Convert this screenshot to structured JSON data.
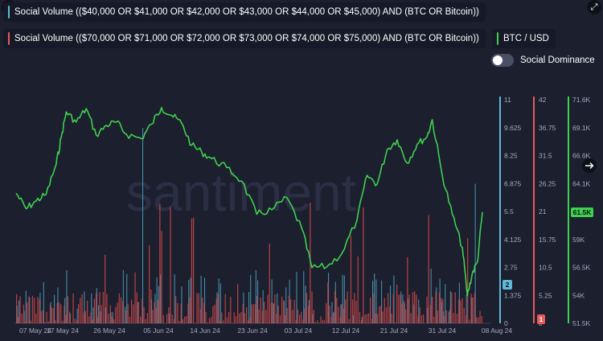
{
  "legend": {
    "series1_label": "Social Volume (($40,000 OR $41,000 OR $42,000 OR $43,000 OR $44,000 OR $45,000) AND (BTC OR Bitcoin))",
    "series2_label": "Social Volume (($70,000 OR $71,000 OR $72,000 OR $73,000 OR $74,000 OR $75,000) AND (BTC OR Bitcoin))",
    "series3_label": "BTC / USD",
    "toggle_label": "Social Dominance",
    "toggle_on": false
  },
  "watermark": "santiment",
  "colors": {
    "background": "#1c1f2e",
    "series1": "#5eb9d6",
    "series2": "#e85a5a",
    "series3": "#3fd04f",
    "price_badge": "#3fd04f"
  },
  "icons": {
    "top_left": "close-icon",
    "top_right": "expand-icon",
    "right_arrow": "arrow-right-icon"
  },
  "chart_data": {
    "type": "line",
    "x_tick_labels": [
      "07 May 24",
      "17 May 24",
      "26 May 24",
      "05 Jun 24",
      "14 Jun 24",
      "23 Jun 24",
      "03 Jul 24",
      "12 Jul 24",
      "21 Jul 24",
      "31 Jul 24",
      "08 Aug 24"
    ],
    "x_range": [
      "2024-05-07",
      "2024-08-08"
    ],
    "axes": [
      {
        "series": "series1",
        "ticks": [
          "0",
          "1.375",
          "2.75",
          "4.125",
          "5.5",
          "6.875",
          "8.25",
          "9.625",
          "11"
        ],
        "range": [
          0,
          11
        ],
        "latest_badge": "2"
      },
      {
        "series": "series2",
        "ticks": [
          "0",
          "5.25",
          "10.5",
          "15.75",
          "21",
          "26.25",
          "31.5",
          "36.75",
          "42"
        ],
        "range": [
          0,
          42
        ],
        "latest_badge": "1"
      },
      {
        "series": "series3",
        "ticks": [
          "51.5K",
          "54K",
          "56.5K",
          "59K",
          "61.5K",
          "64.1K",
          "66.6K",
          "69.1K",
          "71.6K"
        ],
        "range": [
          51500,
          71600
        ],
        "latest_badge": "61.5K"
      }
    ],
    "btc_price_points": [
      [
        "2024-05-07",
        63200
      ],
      [
        "2024-05-09",
        61800
      ],
      [
        "2024-05-11",
        62500
      ],
      [
        "2024-05-13",
        63100
      ],
      [
        "2024-05-15",
        65800
      ],
      [
        "2024-05-16",
        68200
      ],
      [
        "2024-05-17",
        70500
      ],
      [
        "2024-05-19",
        69600
      ],
      [
        "2024-05-21",
        70800
      ],
      [
        "2024-05-23",
        68400
      ],
      [
        "2024-05-25",
        69300
      ],
      [
        "2024-05-27",
        69600
      ],
      [
        "2024-05-29",
        68500
      ],
      [
        "2024-06-01",
        68100
      ],
      [
        "2024-06-03",
        69400
      ],
      [
        "2024-06-05",
        70900
      ],
      [
        "2024-06-07",
        70200
      ],
      [
        "2024-06-09",
        69500
      ],
      [
        "2024-06-11",
        67500
      ],
      [
        "2024-06-13",
        66900
      ],
      [
        "2024-06-15",
        66300
      ],
      [
        "2024-06-18",
        65500
      ],
      [
        "2024-06-21",
        64300
      ],
      [
        "2024-06-24",
        61300
      ],
      [
        "2024-06-27",
        61700
      ],
      [
        "2024-06-30",
        62800
      ],
      [
        "2024-07-03",
        60000
      ],
      [
        "2024-07-05",
        56500
      ],
      [
        "2024-07-08",
        56600
      ],
      [
        "2024-07-11",
        57800
      ],
      [
        "2024-07-14",
        60800
      ],
      [
        "2024-07-16",
        64800
      ],
      [
        "2024-07-18",
        64000
      ],
      [
        "2024-07-20",
        67100
      ],
      [
        "2024-07-22",
        68000
      ],
      [
        "2024-07-24",
        65900
      ],
      [
        "2024-07-26",
        67600
      ],
      [
        "2024-07-28",
        68300
      ],
      [
        "2024-07-29",
        69800
      ],
      [
        "2024-07-31",
        64800
      ],
      [
        "2024-08-02",
        61300
      ],
      [
        "2024-08-04",
        58300
      ],
      [
        "2024-08-05",
        54000
      ],
      [
        "2024-08-06",
        56000
      ],
      [
        "2024-08-07",
        57000
      ],
      [
        "2024-08-08",
        61500
      ]
    ]
  }
}
